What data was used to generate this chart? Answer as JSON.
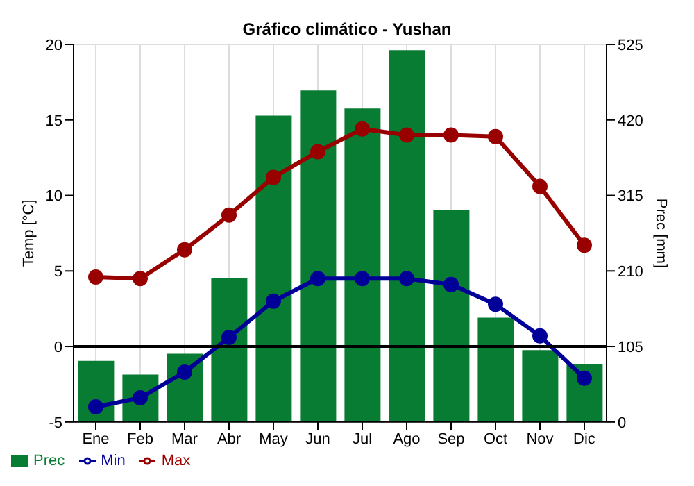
{
  "chart_data": {
    "type": "bar",
    "title": "Gráfico climático - Yushan",
    "ylabel": "Temp [°C]",
    "y2label": "Prec [mm]",
    "categories": [
      "Ene",
      "Feb",
      "Mar",
      "Abr",
      "May",
      "Jun",
      "Jul",
      "Ago",
      "Sep",
      "Oct",
      "Nov",
      "Dic"
    ],
    "series": [
      {
        "name": "Prec",
        "axis": "y2",
        "color": "#077c32",
        "values": [
          85,
          66,
          95,
          200,
          426,
          461,
          436,
          517,
          295,
          145,
          100,
          81
        ]
      },
      {
        "name": "Min",
        "type": "line",
        "color": "#000099",
        "values": [
          -4.0,
          -3.4,
          -1.7,
          0.6,
          3.0,
          4.5,
          4.5,
          4.5,
          4.1,
          2.8,
          0.7,
          -2.1
        ]
      },
      {
        "name": "Max",
        "type": "line",
        "color": "#990000",
        "values": [
          4.6,
          4.5,
          6.4,
          8.7,
          11.2,
          12.9,
          14.4,
          14.0,
          14.0,
          13.9,
          10.6,
          6.7
        ]
      }
    ],
    "ylim": [
      -5,
      20
    ],
    "yticks": [
      -5,
      0,
      5,
      10,
      15,
      20
    ],
    "y2lim": [
      0,
      525
    ],
    "y2ticks": [
      0,
      105,
      210,
      315,
      420,
      525
    ],
    "ref_lines": [
      {
        "axis": "y",
        "value": 0,
        "color": "#000000"
      }
    ],
    "grid": true,
    "legend": "bottom",
    "marker": "circle"
  }
}
